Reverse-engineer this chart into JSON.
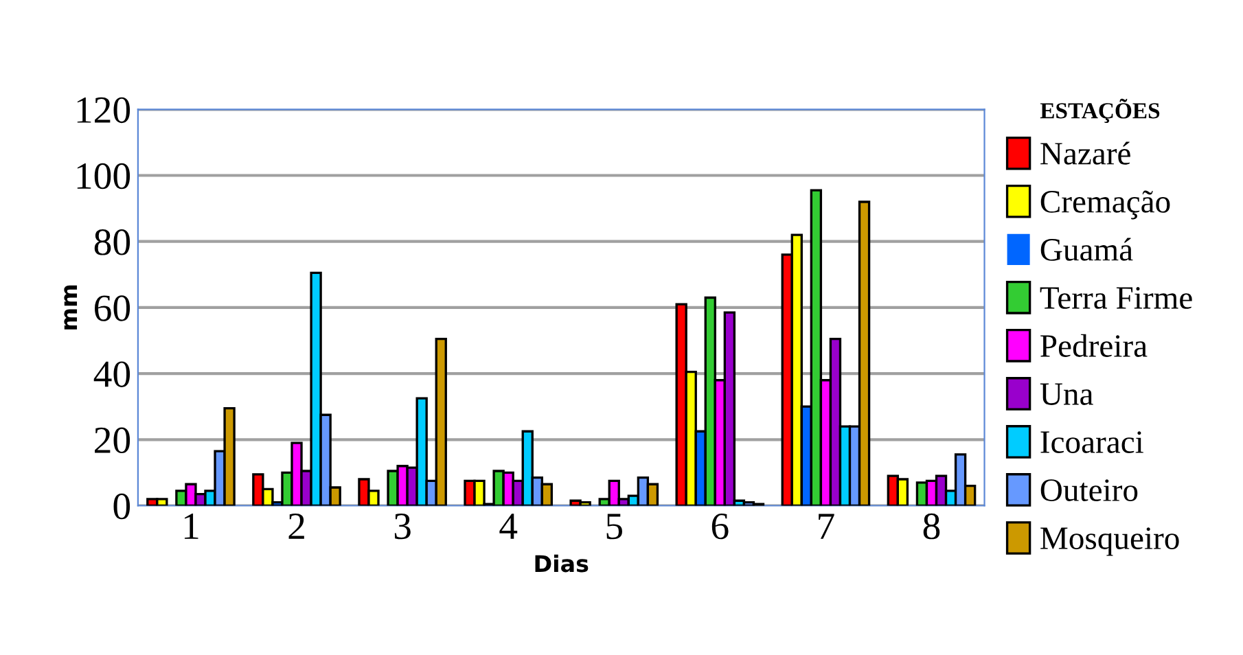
{
  "chart_data": {
    "type": "bar",
    "xlabel": "Dias",
    "ylabel": "mm",
    "legend_title": "ESTAÇÕES",
    "categories": [
      "1",
      "2",
      "3",
      "4",
      "5",
      "6",
      "7",
      "8"
    ],
    "ylim": [
      0,
      120
    ],
    "yticks": [
      0,
      20,
      40,
      60,
      80,
      100,
      120
    ],
    "grid": "y",
    "legend": "right",
    "series": [
      {
        "name": "Nazaré",
        "color": "#ff0000",
        "values": [
          2,
          9.5,
          8,
          7.5,
          1.5,
          61,
          76,
          9
        ]
      },
      {
        "name": "Cremação",
        "color": "#ffff00",
        "values": [
          2,
          5,
          4.5,
          7.5,
          1,
          40.5,
          82,
          8
        ]
      },
      {
        "name": "Guamá",
        "color": "#0066ff",
        "values": [
          0,
          1,
          0,
          0.5,
          0,
          22.5,
          30,
          0
        ]
      },
      {
        "name": "Terra Firme",
        "color": "#33cc33",
        "values": [
          4.5,
          10,
          10.5,
          10.5,
          2,
          63,
          95.5,
          7
        ]
      },
      {
        "name": "Pedreira",
        "color": "#ff00ff",
        "values": [
          6.5,
          19,
          12,
          10,
          7.5,
          38,
          38,
          7.5
        ]
      },
      {
        "name": "Una",
        "color": "#9900cc",
        "values": [
          3.5,
          10.5,
          11.5,
          7.5,
          2,
          58.5,
          50.5,
          9
        ]
      },
      {
        "name": "Icoaraci",
        "color": "#00ccff",
        "values": [
          4.5,
          70.5,
          32.5,
          22.5,
          3,
          1.5,
          24,
          4.5
        ]
      },
      {
        "name": "Outeiro",
        "color": "#6699ff",
        "values": [
          16.5,
          27.5,
          7.5,
          8.5,
          8.5,
          1,
          24,
          15.5
        ]
      },
      {
        "name": "Mosqueiro",
        "color": "#cc9900",
        "values": [
          29.5,
          5.5,
          50.5,
          6.5,
          6.5,
          0.5,
          92,
          6
        ]
      }
    ]
  }
}
